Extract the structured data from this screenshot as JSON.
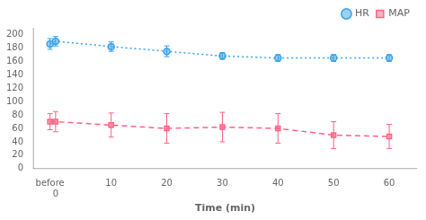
{
  "chart_data": {
    "type": "line",
    "xlabel": "Time (min)",
    "x": [
      -1,
      0,
      10,
      20,
      30,
      40,
      50,
      60
    ],
    "xlim": [
      -4,
      65
    ],
    "xticks": [
      {
        "value": -1,
        "label": "before"
      },
      0,
      10,
      20,
      30,
      40,
      50,
      60
    ],
    "ylim": [
      0,
      210
    ],
    "yticks": [
      0,
      20,
      40,
      60,
      80,
      100,
      120,
      140,
      160,
      180,
      200
    ],
    "grid": false,
    "legend": "upper right",
    "series": [
      {
        "name": "HR",
        "values": [
          186,
          190,
          182,
          175,
          168,
          165,
          165,
          165
        ],
        "errors": [
          8,
          7,
          7,
          8,
          5,
          5,
          5,
          5
        ],
        "marker": "circle",
        "line_style": "dotted"
      },
      {
        "name": "MAP",
        "values": [
          70,
          70,
          65,
          60,
          62,
          60,
          50,
          48
        ],
        "errors": [
          12,
          15,
          18,
          22,
          22,
          22,
          20,
          18
        ],
        "marker": "square",
        "line_style": "dashed"
      }
    ]
  }
}
